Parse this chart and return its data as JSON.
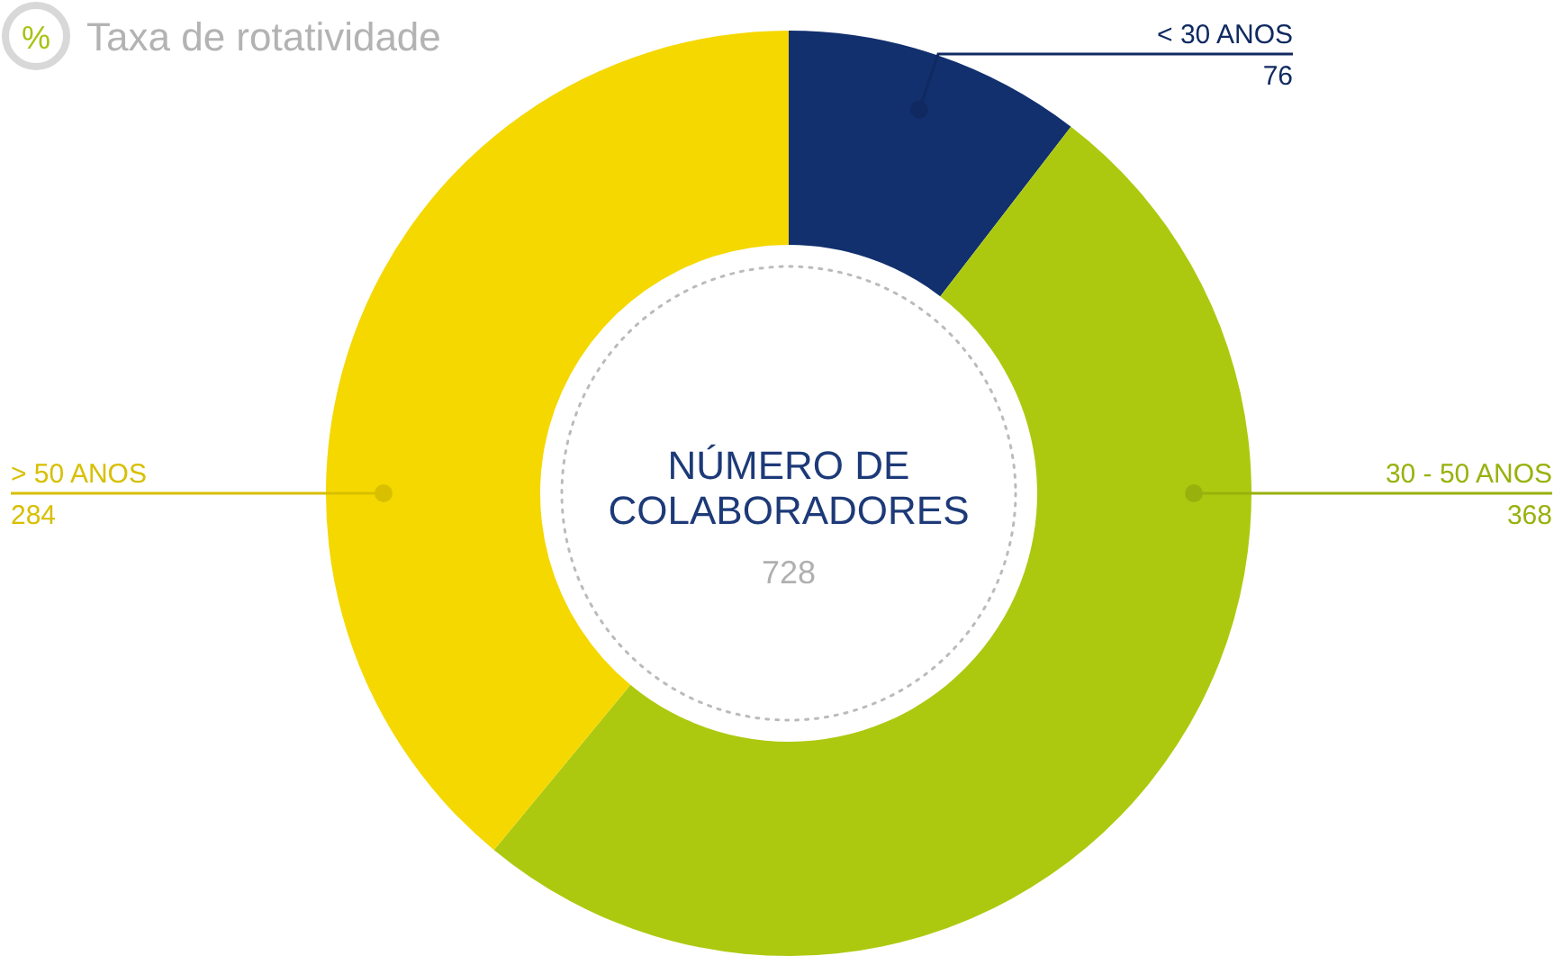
{
  "chart_data": {
    "type": "donut",
    "title": "NÚMERO DE COLABORADORES",
    "subtitle": "728",
    "annotations": [
      "%",
      "Taxa de rotatividade"
    ],
    "categories": [
      "< 30 ANOS",
      "30 - 50 ANOS",
      "> 50 ANOS"
    ],
    "values": [
      76,
      368,
      284
    ],
    "colors": [
      "#12306e",
      "#adc90f",
      "#f5d800"
    ],
    "data_labels": true
  }
}
